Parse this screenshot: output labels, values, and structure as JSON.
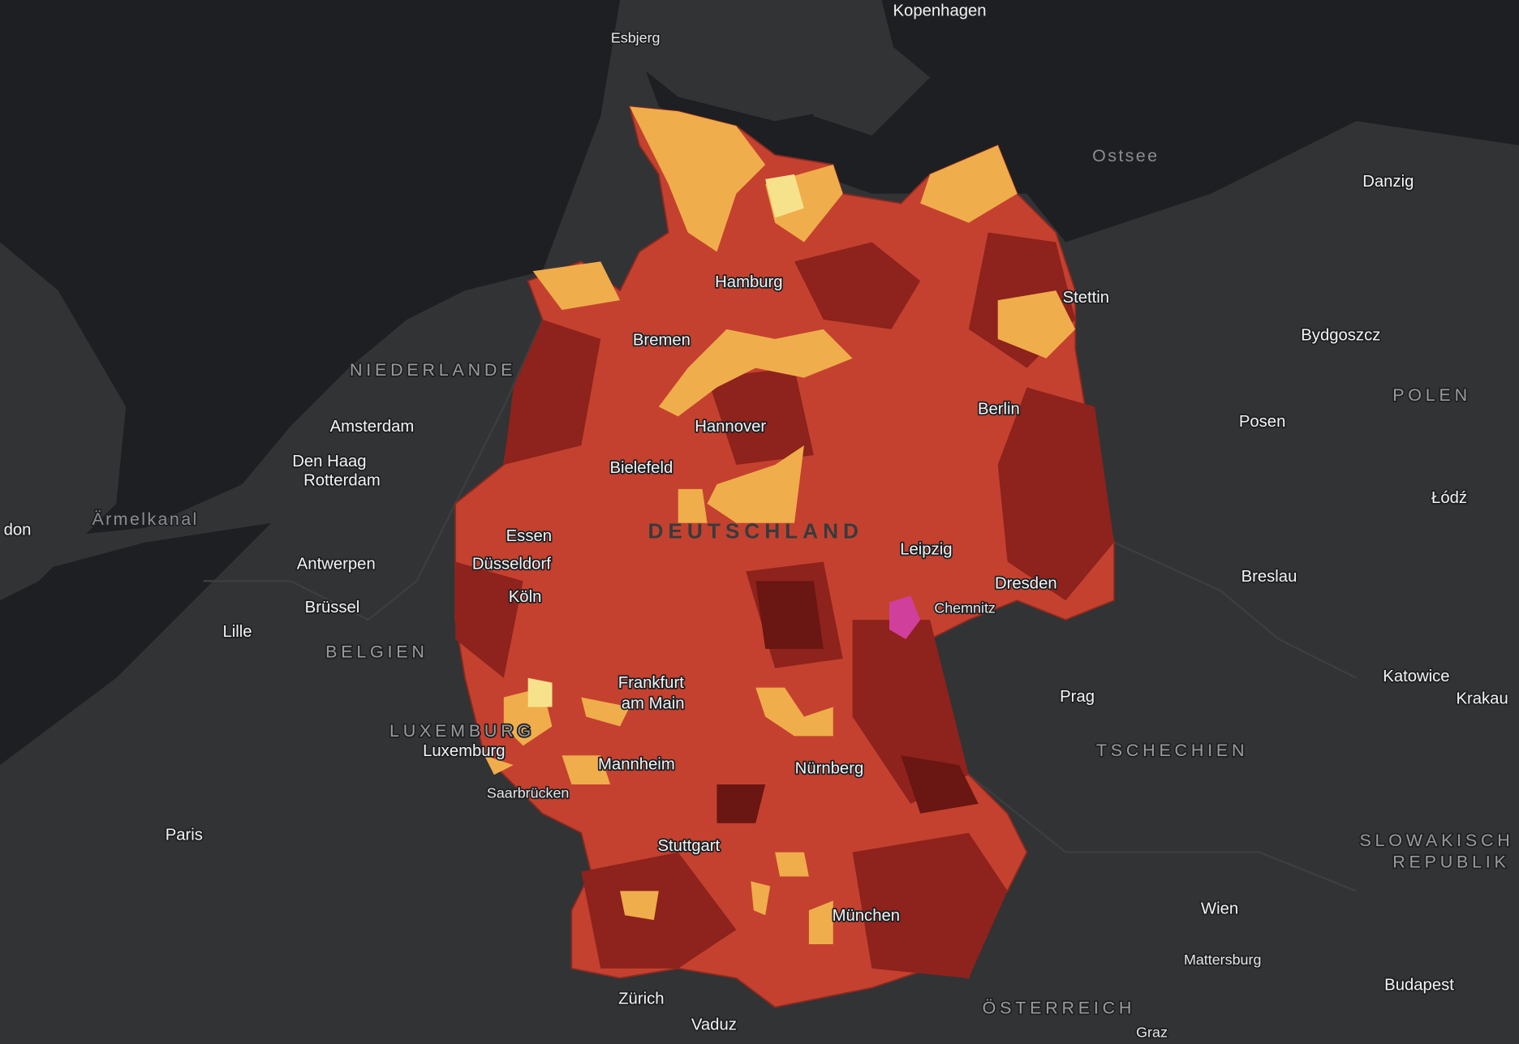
{
  "places": [
    "Kopenhagen",
    "Esbjerg",
    "Ostsee",
    "Danzig",
    "Stettin",
    "Hamburg",
    "Bremen",
    "Bydgoszcz",
    "NIEDERLANDE",
    "POLEN",
    "Amsterdam",
    "Berlin",
    "Hannover",
    "Posen",
    "Den Haag",
    "Rotterdam",
    "Bielefeld",
    "Łódź",
    "Ärmelkanal",
    "don",
    "Essen",
    "DEUTSCHLAND",
    "Leipzig",
    "Antwerpen",
    "Düsseldorf",
    "Dresden",
    "Breslau",
    "Köln",
    "Brüssel",
    "Chemnitz",
    "Lille",
    "BELGIEN",
    "Frankfurt",
    "am Main",
    "Katowice",
    "Prag",
    "Krakau",
    "LUXEMBURG",
    "Luxemburg",
    "TSCHECHIEN",
    "Mannheim",
    "Nürnberg",
    "Saarbrücken",
    "SLOWAKISCH",
    "REPUBLIK",
    "Paris",
    "Stuttgart",
    "Wien",
    "München",
    "Mattersburg",
    "Budapest",
    "Zürich",
    "ÖSTERREICH",
    "Vaduz",
    "Graz"
  ]
}
